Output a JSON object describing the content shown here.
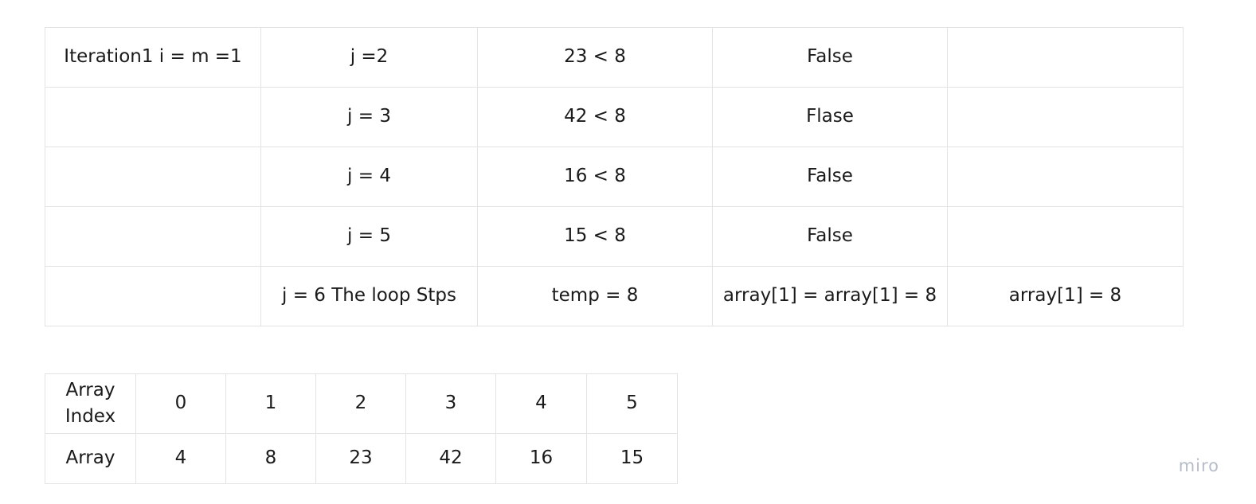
{
  "trace_table": {
    "rows": [
      [
        "Iteration1 i = m =1",
        "j =2",
        "23 < 8",
        "False",
        ""
      ],
      [
        "",
        "j = 3",
        "42 < 8",
        "Flase",
        ""
      ],
      [
        "",
        "j = 4",
        "16 < 8",
        "False",
        ""
      ],
      [
        "",
        "j = 5",
        "15 < 8",
        "False",
        ""
      ],
      [
        "",
        "j = 6 The loop Stps",
        "temp = 8",
        "array[1] = array[1] = 8",
        "array[1] = 8"
      ]
    ]
  },
  "array_table": {
    "index_header": "Array Index",
    "indices": [
      "0",
      "1",
      "2",
      "3",
      "4",
      "5"
    ],
    "value_header": "Array",
    "values": [
      "4",
      "8",
      "23",
      "42",
      "16",
      "15"
    ]
  },
  "watermark": "miro"
}
